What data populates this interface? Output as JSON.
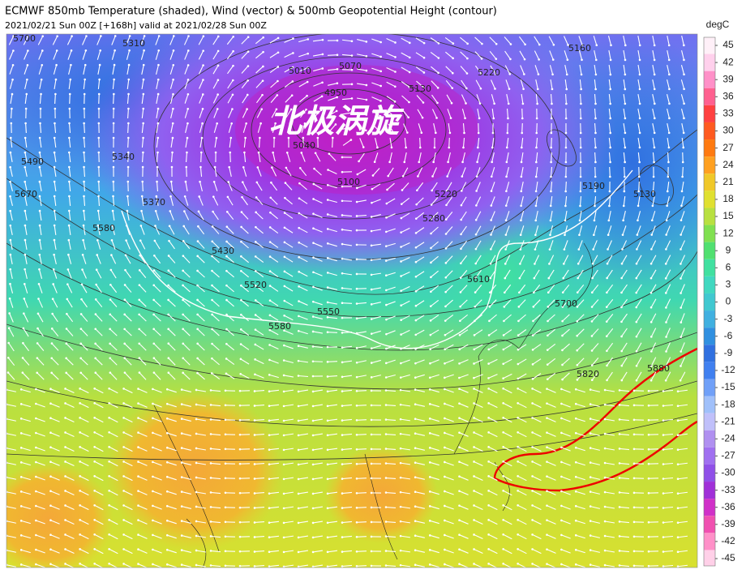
{
  "header": {
    "title": "ECMWF 850mb Temperature (shaded), Wind (vector) & 500mb Geopotential Height (contour)",
    "subtitle": "2021/02/21 Sun 00Z [+168h] valid at 2021/02/28 Sun 00Z"
  },
  "map": {
    "annotation": "北极涡旋",
    "contour_labels": [
      "5700",
      "5310",
      "5070",
      "5010",
      "4950",
      "5130",
      "5160",
      "5220",
      "5490",
      "5340",
      "5670",
      "5580",
      "5370",
      "5040",
      "5100",
      "5220",
      "5280",
      "5190",
      "5130",
      "5430",
      "5520",
      "5550",
      "5580",
      "5610",
      "5700",
      "5820",
      "5880"
    ]
  },
  "colorbar": {
    "unit": "degC",
    "ticks": [
      45,
      42,
      39,
      36,
      33,
      30,
      27,
      24,
      21,
      18,
      15,
      12,
      9,
      6,
      3,
      0,
      -3,
      -6,
      -9,
      -12,
      -15,
      -18,
      -21,
      -24,
      -27,
      -30,
      -33,
      -36,
      -39,
      -42,
      -45
    ],
    "colors": [
      "#fff0f8",
      "#ffd0ec",
      "#ff90c8",
      "#ff6090",
      "#ff4040",
      "#ff5a20",
      "#ff7a10",
      "#ffa020",
      "#f0c828",
      "#e0e030",
      "#b8e040",
      "#80e050",
      "#50e070",
      "#40e0a0",
      "#40d8c0",
      "#40c8d0",
      "#40b0e0",
      "#3090e0",
      "#3070e0",
      "#4080f0",
      "#70a0f8",
      "#a0c0fa",
      "#c0c0fa",
      "#b090f0",
      "#a070f0",
      "#9050e8",
      "#a030d8",
      "#d030c8",
      "#f050b0",
      "#ff90c8",
      "#ffd0e8"
    ]
  }
}
